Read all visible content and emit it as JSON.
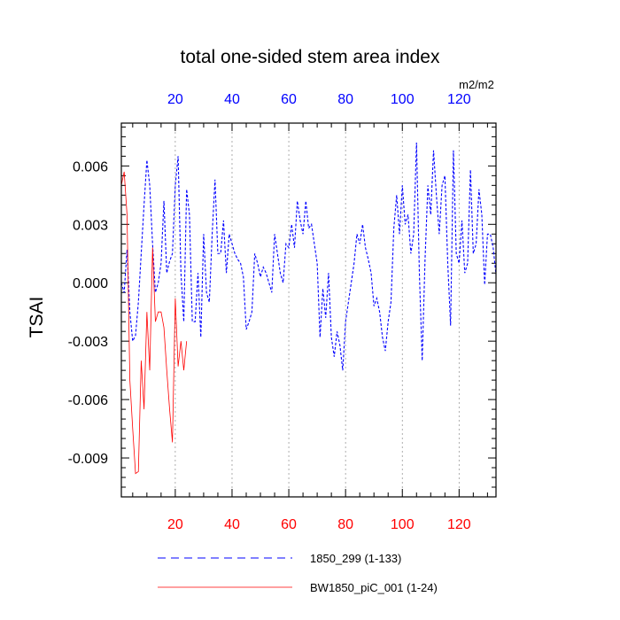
{
  "chart_data": {
    "type": "line",
    "title": "total one-sided stem area index",
    "ylabel": "TSAI",
    "units_label": "m2/m2",
    "xlim": [
      1,
      133
    ],
    "ylim": [
      -0.011,
      0.0082
    ],
    "y_ticks": [
      -0.009,
      -0.006,
      -0.003,
      0.0,
      0.003,
      0.006
    ],
    "y_tick_labels": [
      "-0.009",
      "-0.006",
      "-0.003",
      "0.000",
      "0.003",
      "0.006"
    ],
    "bottom_x_ticks": [
      20,
      40,
      60,
      80,
      100,
      120
    ],
    "top_x_ticks": [
      20,
      40,
      60,
      80,
      100,
      120
    ],
    "bottom_axis_color": "#ff0000",
    "top_axis_color": "#0000ff",
    "grid": "vertical dotted at x ticks",
    "legend_position": "bottom",
    "series": [
      {
        "name": "1850_299 (1-133)",
        "color": "#0000ff",
        "style": "dashed",
        "x": [
          1,
          2,
          3,
          4,
          5,
          6,
          7,
          8,
          9,
          10,
          11,
          12,
          13,
          14,
          15,
          16,
          17,
          18,
          19,
          20,
          21,
          22,
          23,
          24,
          25,
          26,
          27,
          28,
          29,
          30,
          31,
          32,
          33,
          34,
          35,
          36,
          37,
          38,
          39,
          40,
          41,
          42,
          43,
          44,
          45,
          46,
          47,
          48,
          49,
          50,
          51,
          52,
          53,
          54,
          55,
          56,
          57,
          58,
          59,
          60,
          61,
          62,
          63,
          64,
          65,
          66,
          67,
          68,
          69,
          70,
          71,
          72,
          73,
          74,
          75,
          76,
          77,
          78,
          79,
          80,
          81,
          82,
          83,
          84,
          85,
          86,
          87,
          88,
          89,
          90,
          91,
          92,
          93,
          94,
          95,
          96,
          97,
          98,
          99,
          100,
          101,
          102,
          103,
          104,
          105,
          106,
          107,
          108,
          109,
          110,
          111,
          112,
          113,
          114,
          115,
          116,
          117,
          118,
          119,
          120,
          121,
          122,
          123,
          124,
          125,
          126,
          127,
          128,
          129,
          130,
          131,
          132,
          133
        ],
        "values": [
          0.0,
          -0.0005,
          0.0017,
          -0.0015,
          -0.003,
          -0.0027,
          -0.001,
          0.0015,
          0.004,
          0.0063,
          0.005,
          0.002,
          -0.0005,
          0.0,
          0.001,
          0.0042,
          0.0005,
          0.0011,
          0.0015,
          0.005,
          0.0065,
          0.0005,
          -0.002,
          0.0048,
          0.0035,
          -0.002,
          -0.002,
          0.0005,
          -0.0028,
          0.0025,
          -0.0005,
          -0.001,
          0.0025,
          0.0053,
          0.0015,
          0.0015,
          0.0032,
          0.0005,
          0.0025,
          0.002,
          0.0015,
          0.0012,
          0.001,
          0.0003,
          -0.0024,
          -0.002,
          -0.0015,
          0.0015,
          0.001,
          0.0003,
          0.0008,
          0.0005,
          0.0,
          -0.0005,
          0.0025,
          0.0015,
          0.0005,
          0.0,
          0.002,
          0.0018,
          0.003,
          0.0018,
          0.0042,
          0.0032,
          0.0025,
          0.0042,
          0.0028,
          0.003,
          0.002,
          0.001,
          -0.0028,
          -0.0003,
          -0.0018,
          0.0005,
          -0.0028,
          -0.0038,
          -0.0025,
          -0.0032,
          -0.0045,
          -0.002,
          -0.001,
          0.0,
          0.001,
          0.0025,
          0.002,
          0.003,
          0.0018,
          0.0012,
          0.0005,
          -0.0012,
          -0.0008,
          -0.0015,
          -0.0028,
          -0.0035,
          -0.002,
          -0.001,
          0.0028,
          0.0045,
          0.0025,
          0.005,
          0.003,
          0.0035,
          0.0015,
          0.0025,
          0.0072,
          0.0005,
          -0.004,
          0.0012,
          0.005,
          0.0035,
          0.0068,
          0.0045,
          0.0025,
          0.005,
          0.0055,
          0.001,
          -0.0022,
          0.0068,
          0.0015,
          0.001,
          0.0032,
          0.0005,
          0.001,
          0.0058,
          0.0015,
          0.002,
          0.0048,
          0.0035,
          -0.0001,
          0.0025,
          0.0025,
          0.0018,
          0.0004
        ]
      },
      {
        "name": "BW1850_piC_001 (1-24)",
        "color": "#ff0000",
        "style": "solid",
        "x": [
          1,
          2,
          3,
          4,
          5,
          6,
          7,
          8,
          9,
          10,
          11,
          12,
          13,
          14,
          15,
          16,
          17,
          18,
          19,
          20,
          21,
          22,
          23,
          24
        ],
        "values": [
          0.005,
          0.0057,
          0.0035,
          -0.005,
          -0.0075,
          -0.0098,
          -0.0097,
          -0.004,
          -0.0065,
          -0.0015,
          -0.0045,
          0.0018,
          -0.002,
          -0.0015,
          -0.0015,
          -0.0023,
          -0.0045,
          -0.0065,
          -0.0082,
          -0.0008,
          -0.0043,
          -0.003,
          -0.0045,
          -0.003
        ]
      }
    ]
  }
}
